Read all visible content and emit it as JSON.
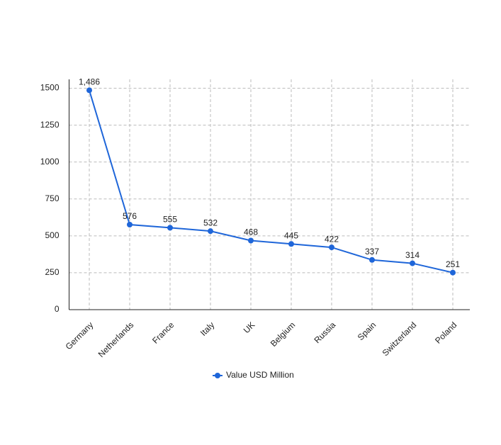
{
  "chart_data": {
    "type": "line",
    "categories": [
      "Germany",
      "Netherlands",
      "France",
      "Italy",
      "UK",
      "Belgium",
      "Russia",
      "Spain",
      "Switzerland",
      "Poland"
    ],
    "series": [
      {
        "name": "Value USD Million",
        "color": "#1f66d9",
        "values": [
          1486,
          576,
          555,
          532,
          468,
          445,
          422,
          337,
          314,
          251
        ],
        "value_labels": [
          "1,486",
          "576",
          "555",
          "532",
          "468",
          "445",
          "422",
          "337",
          "314",
          "251"
        ]
      }
    ],
    "ylim": [
      0,
      1560
    ],
    "yticks": [
      0,
      250,
      500,
      750,
      1000,
      1250,
      1500
    ],
    "grid": true,
    "legend": "bottom"
  }
}
